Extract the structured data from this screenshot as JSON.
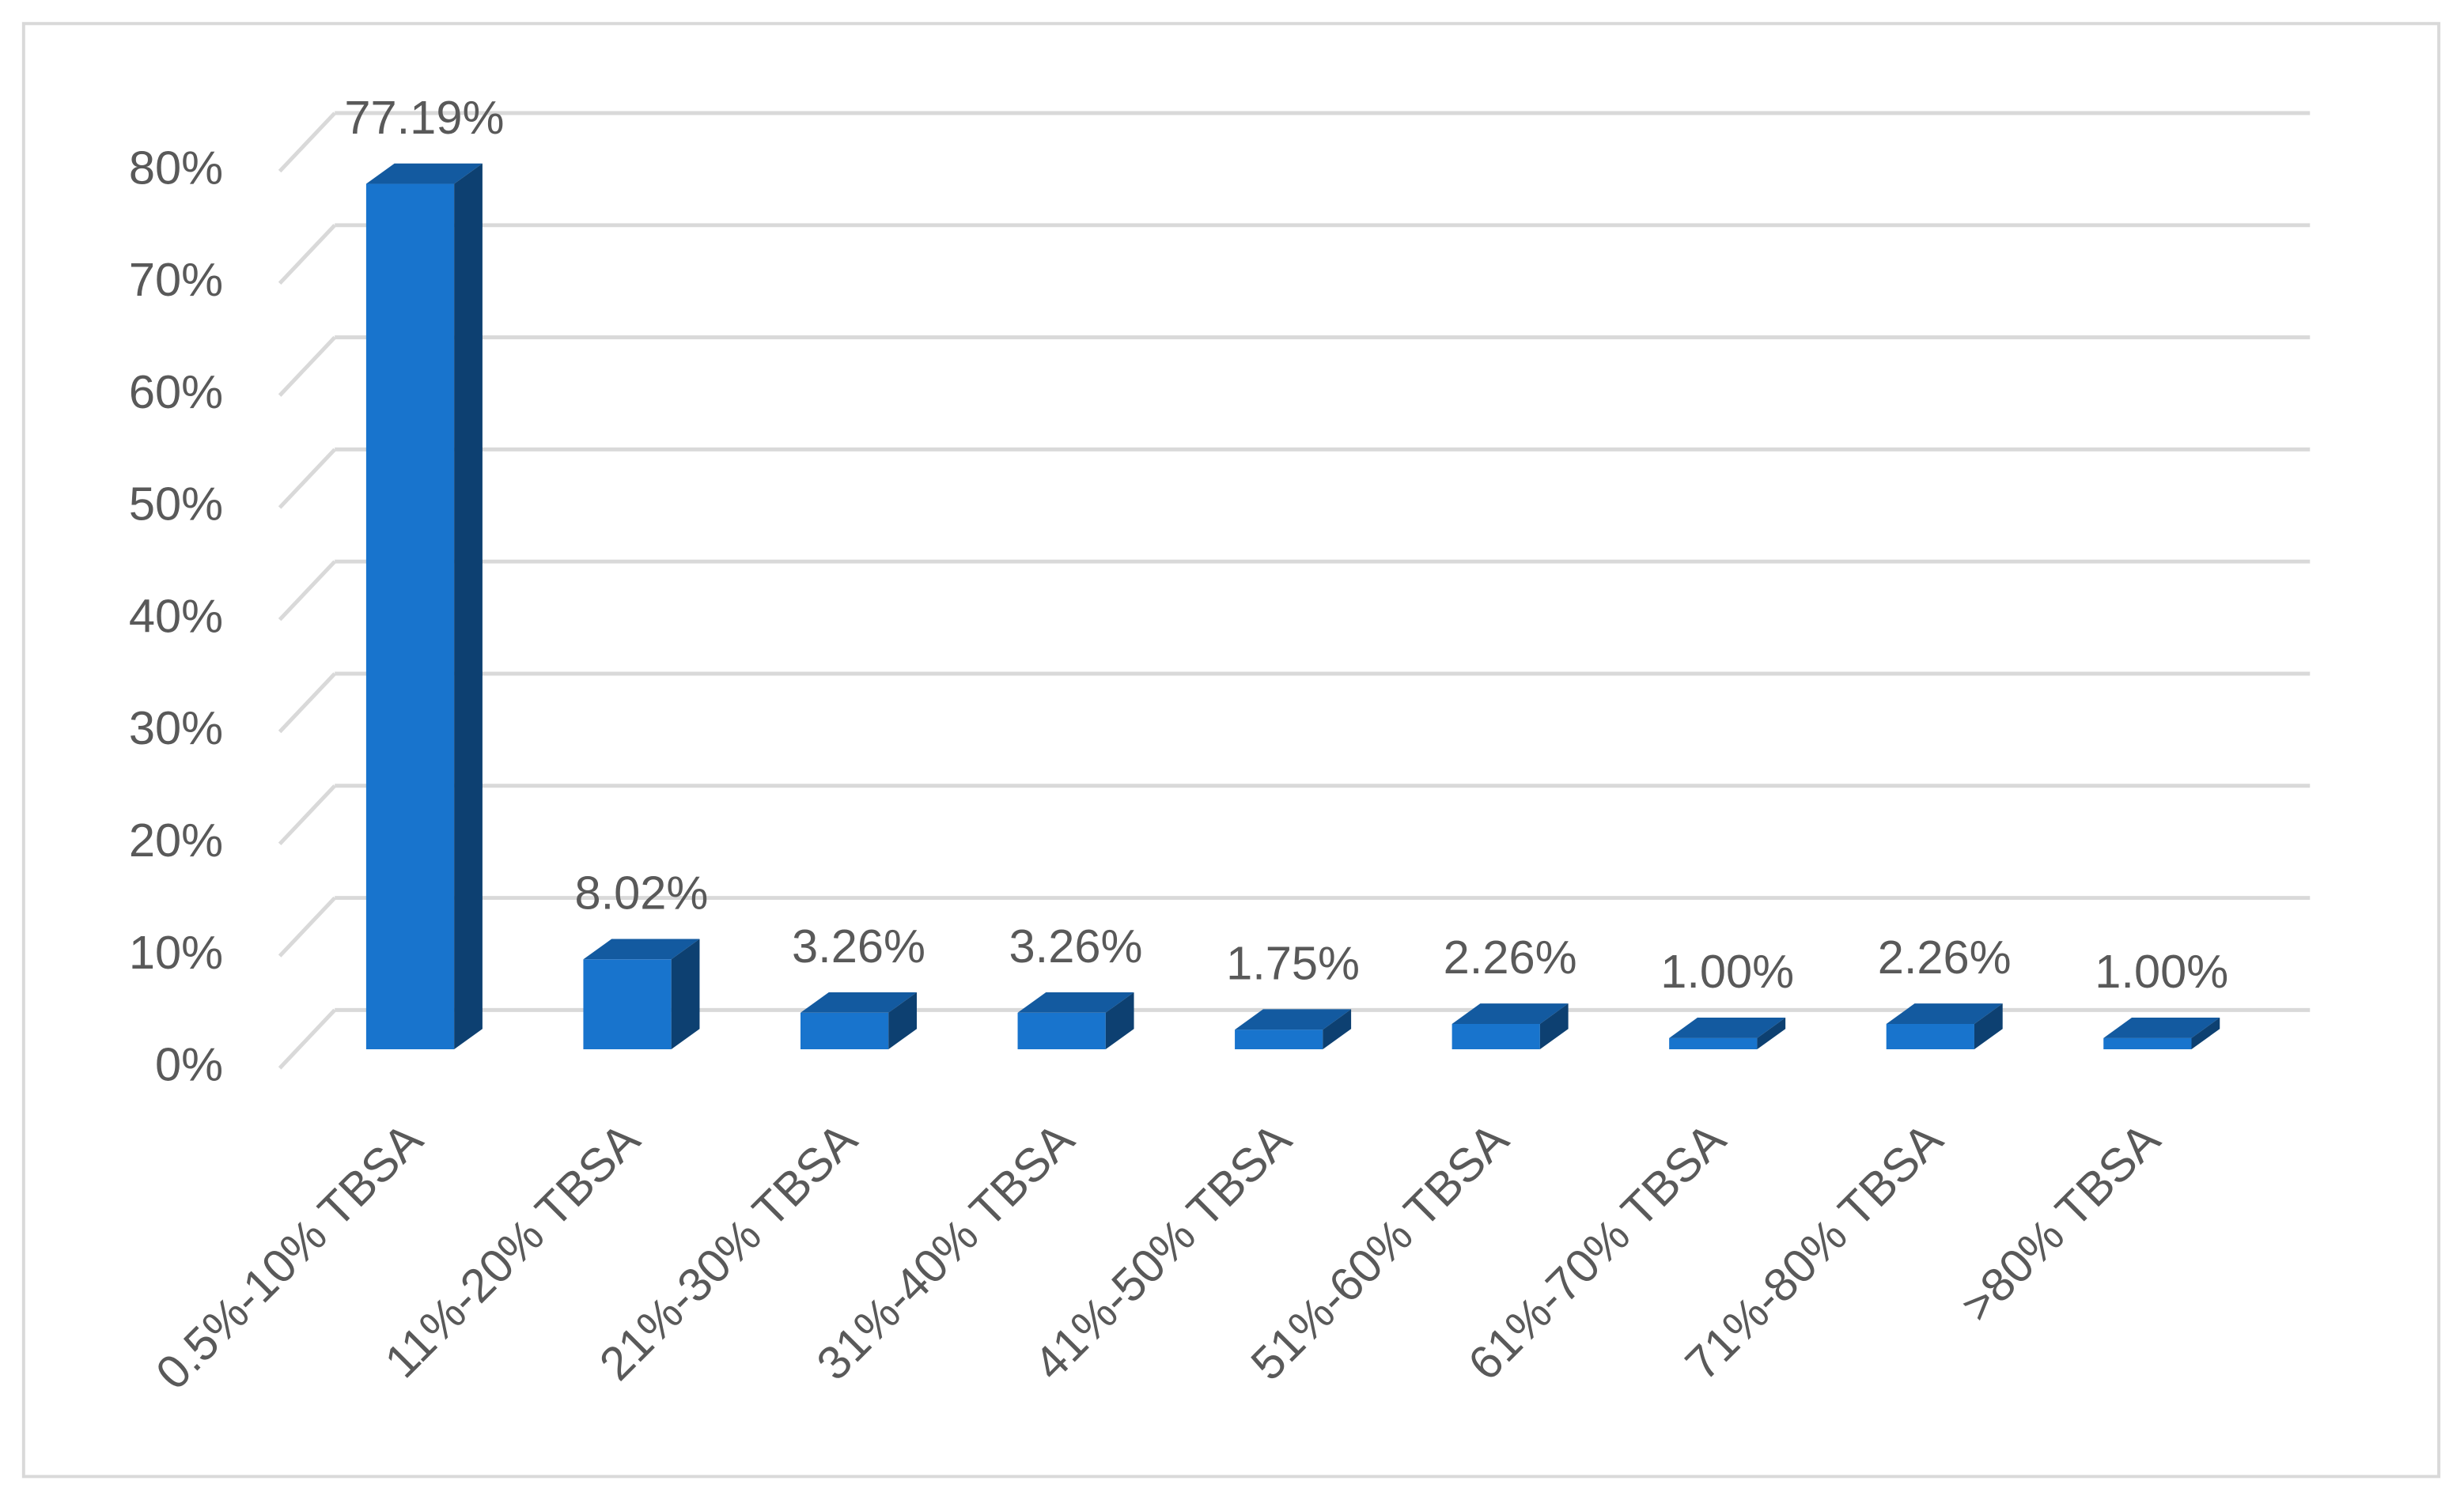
{
  "chart_data": {
    "type": "bar3d",
    "categories": [
      "0.5%-10% TBSA",
      "11%-20% TBSA",
      "21%-30% TBSA",
      "31%-40% TBSA",
      "41%-50% TBSA",
      "51%-60% TBSA",
      "61%-70% TBSA",
      "71%-80% TBSA",
      ">80% TBSA"
    ],
    "values": [
      77.19,
      8.02,
      3.26,
      3.26,
      1.75,
      2.26,
      1,
      2.26,
      1
    ],
    "value_labels": [
      "77.19%",
      "8.02%",
      "3.26%",
      "3.26%",
      "1.75%",
      "2.26%",
      "1.00%",
      "2.26%",
      "1.00%"
    ],
    "color": "#1874cd",
    "ylim": [
      0,
      80
    ],
    "yticks": [
      {
        "value": 0,
        "label": "0%"
      },
      {
        "value": 10,
        "label": "10%"
      },
      {
        "value": 20,
        "label": "20%"
      },
      {
        "value": 30,
        "label": "30%"
      },
      {
        "value": 40,
        "label": "40%"
      },
      {
        "value": 50,
        "label": "50%"
      },
      {
        "value": 60,
        "label": "60%"
      },
      {
        "value": 70,
        "label": "70%"
      },
      {
        "value": 80,
        "label": "80%"
      }
    ],
    "grid": true
  }
}
